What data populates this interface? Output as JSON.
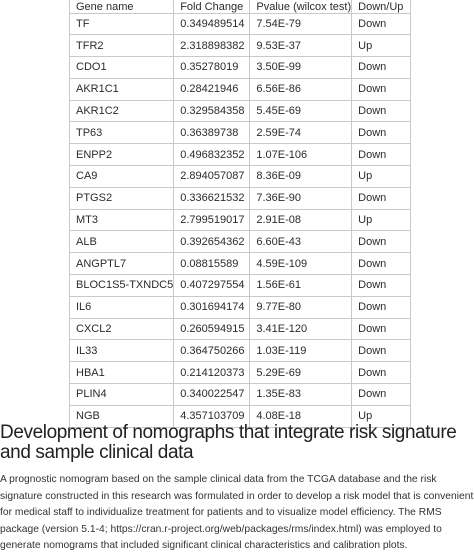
{
  "table": {
    "headers": [
      "Gene name",
      "Fold Change",
      "Pvalue (wilcox test)",
      "Down/Up"
    ],
    "rows": [
      [
        "TF",
        "0.349489514",
        "7.54E-79",
        "Down"
      ],
      [
        "TFR2",
        "2.318898382",
        "9.53E-37",
        "Up"
      ],
      [
        "CDO1",
        "0.35278019",
        "3.50E-99",
        "Down"
      ],
      [
        "AKR1C1",
        "0.28421946",
        "6.56E-86",
        "Down"
      ],
      [
        "AKR1C2",
        "0.329584358",
        "5.45E-69",
        "Down"
      ],
      [
        "TP63",
        "0.36389738",
        "2.59E-74",
        "Down"
      ],
      [
        "ENPP2",
        "0.496832352",
        "1.07E-106",
        "Down"
      ],
      [
        "CA9",
        "2.894057087",
        "8.36E-09",
        "Up"
      ],
      [
        "PTGS2",
        "0.336621532",
        "7.36E-90",
        "Down"
      ],
      [
        "MT3",
        "2.799519017",
        "2.91E-08",
        "Up"
      ],
      [
        "ALB",
        "0.392654362",
        "6.60E-43",
        "Down"
      ],
      [
        "ANGPTL7",
        "0.08815589",
        "4.59E-109",
        "Down"
      ],
      [
        "BLOC1S5-TXNDC5",
        "0.407297554",
        "1.56E-61",
        "Down"
      ],
      [
        "IL6",
        "0.301694174",
        "9.77E-80",
        "Down"
      ],
      [
        "CXCL2",
        "0.260594915",
        "3.41E-120",
        "Down"
      ],
      [
        "IL33",
        "0.364750266",
        "1.03E-119",
        "Down"
      ],
      [
        "HBA1",
        "0.214120373",
        "5.29E-69",
        "Down"
      ],
      [
        "PLIN4",
        "0.340022547",
        "1.35E-83",
        "Down"
      ],
      [
        "NGB",
        "4.357103709",
        "4.08E-18",
        "Up"
      ]
    ]
  },
  "section": {
    "heading": "Development of nomographs that integrate risk signature and sample clinical data",
    "paragraph": "A prognostic nomogram based on the sample clinical data from the TCGA database and the risk signature constructed in this research was formulated in order to develop a risk model that is convenient for medical staff to individualize treatment for patients and to visualize model efficiency. The RMS package (version 5.1-4; https://cran.r-project.org/web/packages/rms/index.html) was employed to generate nomograms that included significant clinical characteristics and calibration plots."
  }
}
